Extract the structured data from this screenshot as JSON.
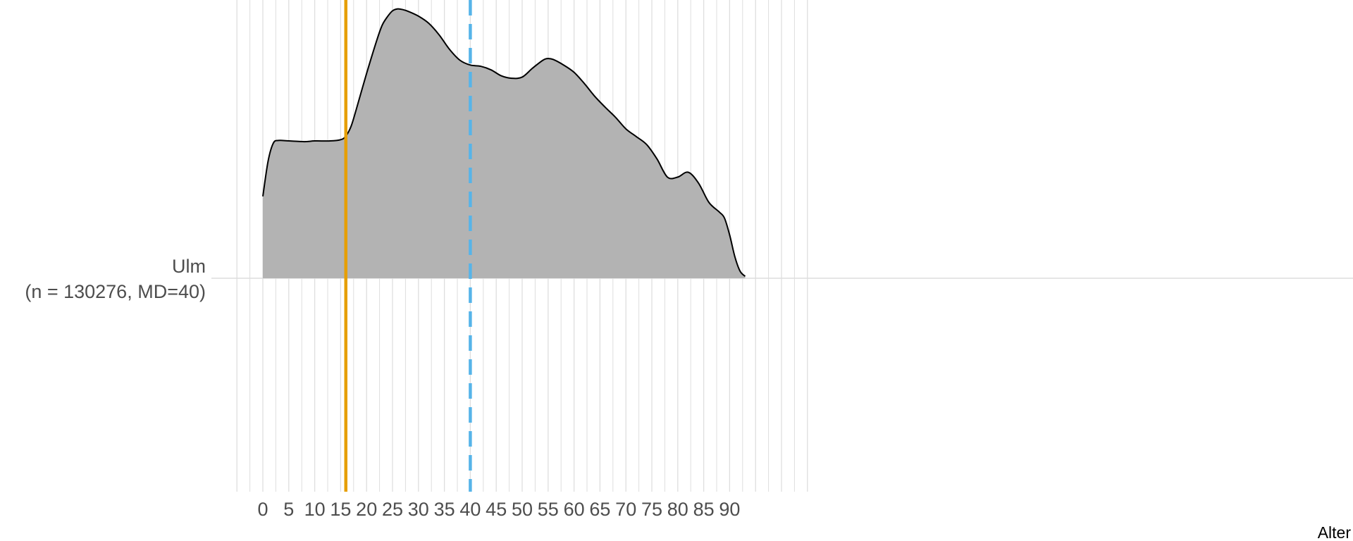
{
  "chart_data": {
    "type": "area",
    "title": "",
    "xlabel": "Alter",
    "ylabel": "",
    "xlim": [
      -5,
      105
    ],
    "x_ticks": [
      0,
      5,
      10,
      15,
      20,
      25,
      30,
      35,
      40,
      45,
      50,
      55,
      60,
      65,
      70,
      75,
      80,
      85,
      90
    ],
    "minor_gridlines": true,
    "grid": true,
    "group": {
      "label": "Ulm",
      "n_label": "(n = 130276, MD=40)"
    },
    "series": [
      {
        "name": "Ulm",
        "x": [
          0,
          1,
          2,
          3,
          5,
          8,
          10,
          13,
          15,
          16,
          17,
          18,
          20,
          22,
          23,
          24,
          25,
          26,
          27,
          28,
          30,
          32,
          34,
          36,
          38,
          40,
          42,
          44,
          46,
          48,
          50,
          52,
          54,
          55,
          56,
          58,
          60,
          62,
          64,
          66,
          68,
          70,
          72,
          74,
          76,
          78,
          80,
          82,
          84,
          86,
          88,
          89,
          90,
          91,
          92,
          93
        ],
        "y": [
          0.034,
          0.0485,
          0.056,
          0.0572,
          0.057,
          0.0567,
          0.057,
          0.057,
          0.0575,
          0.059,
          0.063,
          0.07,
          0.085,
          0.099,
          0.105,
          0.1085,
          0.111,
          0.1118,
          0.1115,
          0.1108,
          0.1088,
          0.1058,
          0.101,
          0.095,
          0.0905,
          0.0885,
          0.088,
          0.0865,
          0.084,
          0.083,
          0.0835,
          0.0872,
          0.0905,
          0.0912,
          0.0908,
          0.0885,
          0.0855,
          0.0808,
          0.0755,
          0.071,
          0.0668,
          0.062,
          0.0588,
          0.0555,
          0.0495,
          0.042,
          0.042,
          0.044,
          0.0395,
          0.0315,
          0.0275,
          0.025,
          0.018,
          0.009,
          0.003,
          0.0008
        ]
      }
    ],
    "ylim": [
      0,
      0.1155
    ],
    "reference_lines": [
      {
        "x": 16,
        "style": "solid",
        "color": "#e69f00"
      },
      {
        "x": 40,
        "style": "dashed",
        "color": "#56b4e9"
      }
    ],
    "colors": {
      "fill": "#b3b3b3",
      "outline": "#000000",
      "grid": "#dedede",
      "tick_text": "#4d4d4d"
    }
  }
}
